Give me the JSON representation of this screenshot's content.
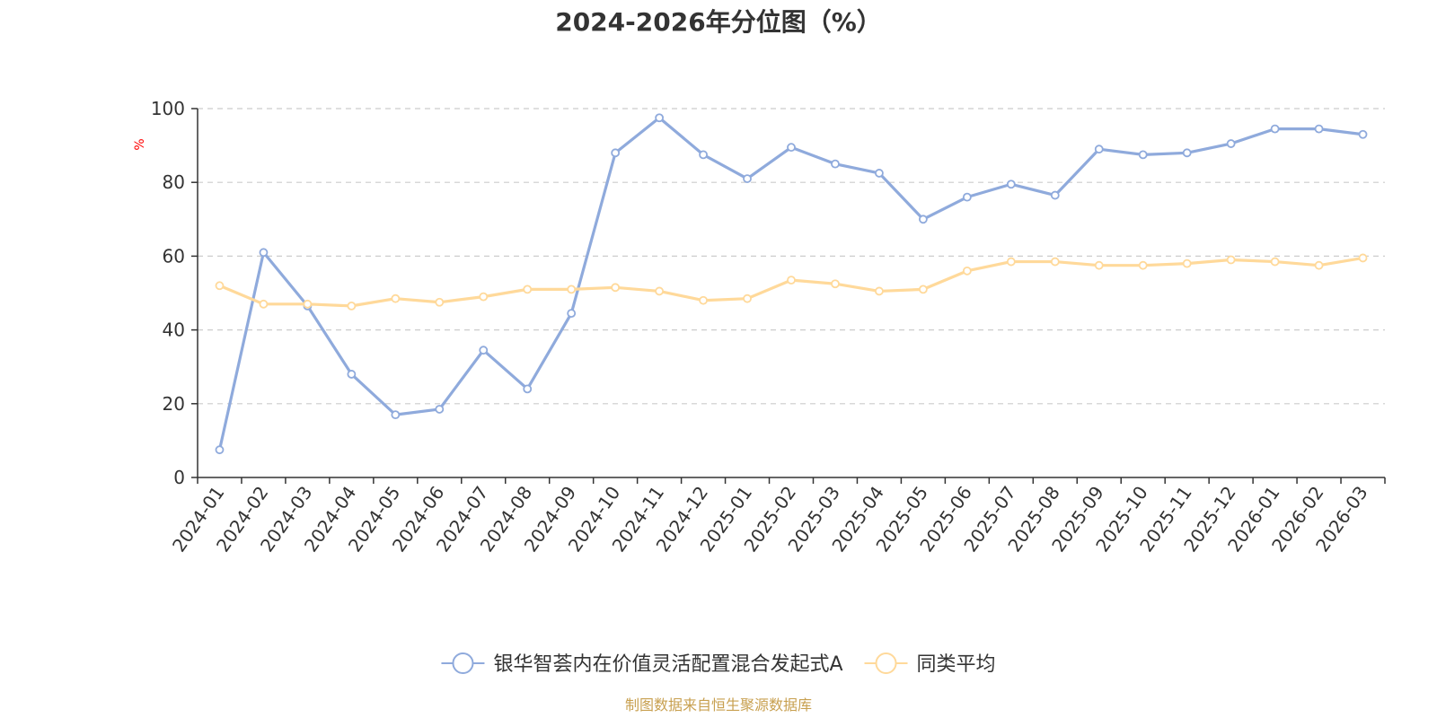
{
  "chart_data": {
    "type": "line",
    "title": "2024-2026年分位图（%）",
    "ylabel": "%",
    "xlabel": "",
    "ylim": [
      0,
      100
    ],
    "yticks": [
      0,
      20,
      40,
      60,
      80,
      100
    ],
    "grid": true,
    "legend_position": "bottom-center",
    "categories": [
      "2024-01",
      "2024-02",
      "2024-03",
      "2024-04",
      "2024-05",
      "2024-06",
      "2024-07",
      "2024-08",
      "2024-09",
      "2024-10",
      "2024-11",
      "2024-12",
      "2025-01",
      "2025-02",
      "2025-03",
      "2025-04",
      "2025-05",
      "2025-06",
      "2025-07",
      "2025-08",
      "2025-09",
      "2025-10",
      "2025-11",
      "2025-12",
      "2026-01",
      "2026-02",
      "2026-03"
    ],
    "series": [
      {
        "name": "银华智荟内在价值灵活配置混合发起式A",
        "color": "#8faadc",
        "values": [
          7.5,
          61,
          46.5,
          28,
          17,
          18.5,
          34.5,
          24,
          44.5,
          88,
          97.5,
          87.5,
          81,
          89.5,
          85,
          82.5,
          70,
          76,
          79.5,
          76.5,
          89,
          87.5,
          88,
          90.5,
          94.5,
          94.5,
          93
        ]
      },
      {
        "name": "同类平均",
        "color": "#ffd99a",
        "values": [
          52,
          47,
          47,
          46.5,
          48.5,
          47.5,
          49,
          51,
          51,
          51.5,
          50.5,
          48,
          48.5,
          53.5,
          52.5,
          50.5,
          51,
          56,
          58.5,
          58.5,
          57.5,
          57.5,
          58,
          59,
          58.5,
          57.5,
          59.5
        ]
      }
    ]
  },
  "source": "制图数据来自恒生聚源数据库",
  "colors": {
    "axis": "#333333",
    "grid": "#cccccc",
    "ylabel": "#ff0000",
    "source": "#c8a050"
  }
}
